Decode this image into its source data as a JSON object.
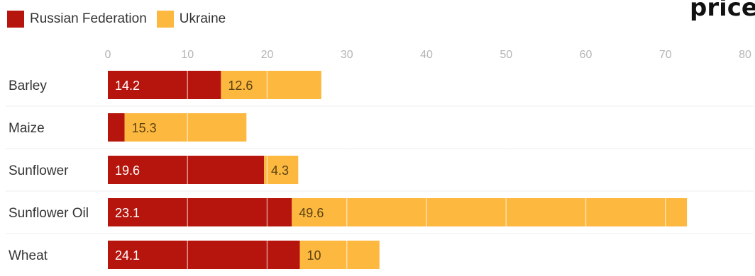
{
  "corner_text": "price",
  "chart_data": {
    "type": "bar",
    "orientation": "horizontal",
    "stacked": true,
    "title": "",
    "xlabel": "",
    "ylabel": "",
    "xlim": [
      0,
      80
    ],
    "ticks": [
      0,
      10,
      20,
      30,
      40,
      50,
      60,
      70,
      80
    ],
    "tick_labels": [
      "0",
      "10",
      "20",
      "30",
      "40",
      "50",
      "60",
      "70",
      "80"
    ],
    "grid": true,
    "legend_position": "top-left",
    "categories": [
      "Barley",
      "Maize",
      "Sunflower",
      "Sunflower Oil",
      "Wheat"
    ],
    "series": [
      {
        "name": "Russian Federation",
        "color": "#b5150c",
        "values": [
          14.2,
          2.1,
          19.6,
          23.1,
          24.1
        ],
        "labels": [
          "14.2",
          "",
          "19.6",
          "23.1",
          "24.1"
        ]
      },
      {
        "name": "Ukraine",
        "color": "#fdb840",
        "values": [
          12.6,
          15.3,
          4.3,
          49.6,
          10
        ],
        "labels": [
          "12.6",
          "15.3",
          "4.3",
          "49.6",
          "10"
        ]
      }
    ]
  }
}
